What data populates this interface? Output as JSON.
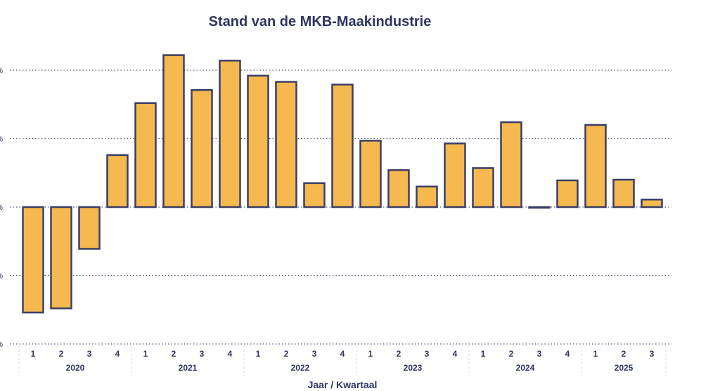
{
  "chart_data": {
    "type": "bar",
    "title": "Stand van de MKB-Maakindustrie",
    "xlabel": "Jaar / Kwartaal",
    "ylabel": "",
    "years": [
      "2020",
      "2021",
      "2022",
      "2023",
      "2024",
      "2025"
    ],
    "categories": [
      "1",
      "2",
      "3",
      "4",
      "1",
      "2",
      "3",
      "4",
      "1",
      "2",
      "3",
      "4",
      "1",
      "2",
      "3",
      "4",
      "1",
      "2",
      "3",
      "4",
      "1",
      "2",
      "3"
    ],
    "values": [
      -1.54,
      -1.48,
      -0.61,
      0.76,
      1.52,
      2.22,
      1.71,
      2.14,
      1.92,
      1.83,
      0.35,
      1.79,
      0.97,
      0.54,
      0.3,
      0.93,
      0.57,
      1.24,
      -0.01,
      0.39,
      1.2,
      0.4,
      0.11
    ],
    "ylim": [
      -2,
      2
    ],
    "yticks": [
      2,
      1,
      0,
      -1,
      -2
    ],
    "ytick_labels": [
      "%",
      "%",
      "%",
      "%",
      "%"
    ],
    "grid": true,
    "bar_color": "#f5b94f",
    "bar_edge_color": "#3b3f63",
    "text_color": "#2e3560"
  }
}
